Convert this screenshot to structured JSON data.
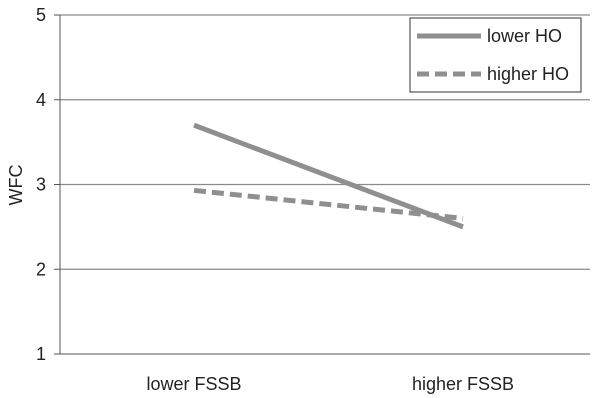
{
  "chart_data": {
    "type": "line",
    "title": "",
    "xlabel": "",
    "ylabel": "WFC",
    "categories": [
      "lower FSSB",
      "higher FSSB"
    ],
    "ylim": [
      1,
      5
    ],
    "yticks": [
      1,
      2,
      3,
      4,
      5
    ],
    "grid": true,
    "legend_position": "top-right",
    "series": [
      {
        "name": "lower HO",
        "values": [
          3.7,
          2.5
        ],
        "style": "solid",
        "color": "#8f8f8f"
      },
      {
        "name": "higher HO",
        "values": [
          2.93,
          2.6
        ],
        "style": "dashed",
        "color": "#8f8f8f"
      }
    ]
  }
}
